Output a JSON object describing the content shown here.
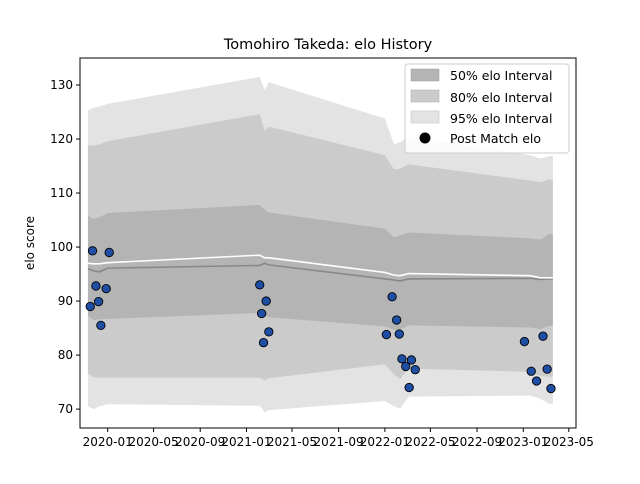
{
  "chart_data": {
    "type": "line",
    "title": "Tomohiro Takeda: elo History",
    "xlabel": "",
    "ylabel": "elo score",
    "xlim": [
      "2019-10-20",
      "2023-05-20"
    ],
    "ylim": [
      66.5,
      135
    ],
    "x_ticks": [
      "2020-01",
      "2020-05",
      "2020-09",
      "2021-01",
      "2021-05",
      "2021-09",
      "2022-01",
      "2022-05",
      "2022-09",
      "2023-01",
      "2023-05"
    ],
    "x_tick_dates": [
      "2020-01-01",
      "2020-05-01",
      "2020-09-01",
      "2021-01-01",
      "2021-05-01",
      "2021-09-01",
      "2022-01-01",
      "2022-05-01",
      "2022-09-01",
      "2023-01-01",
      "2023-05-01"
    ],
    "y_ticks": [
      70,
      80,
      90,
      100,
      110,
      120,
      130
    ],
    "legend_position": "top-right",
    "legend": [
      {
        "label": "50% elo Interval",
        "kind": "patch",
        "color": "#b4b4b4"
      },
      {
        "label": "80% elo Interval",
        "kind": "patch",
        "color": "#cbcbcb"
      },
      {
        "label": "95% elo Interval",
        "kind": "patch",
        "color": "#e3e3e3"
      },
      {
        "label": "Post Match elo",
        "kind": "marker",
        "color": "#000000"
      }
    ],
    "colors": {
      "band95": "#e3e3e3",
      "band80": "#cbcbcb",
      "band50": "#b4b4b4",
      "median_line": "#888888",
      "mean_line": "#ffffff",
      "points": "#1f4fa5"
    },
    "band_dates": [
      "2019-11-10",
      "2019-11-25",
      "2019-12-10",
      "2020-01-01",
      "2021-02-05",
      "2021-02-18",
      "2021-03-01",
      "2022-01-01",
      "2022-01-25",
      "2022-02-10",
      "2022-03-05",
      "2023-01-20",
      "2023-02-15",
      "2023-03-10",
      "2023-03-20"
    ],
    "bands": {
      "p95_upper": [
        125.3,
        125.8,
        126.0,
        126.5,
        131.5,
        129.0,
        130.5,
        123.8,
        119.0,
        119.4,
        120.5,
        117.0,
        116.4,
        116.8,
        116.9
      ],
      "p80_upper": [
        118.8,
        118.8,
        119.0,
        119.6,
        124.6,
        121.5,
        122.3,
        117.0,
        114.4,
        114.5,
        115.3,
        112.3,
        112.0,
        112.5,
        112.4
      ],
      "p50_upper": [
        105.8,
        105.2,
        105.5,
        106.3,
        107.8,
        106.9,
        106.4,
        103.4,
        101.8,
        102.1,
        102.7,
        101.6,
        101.4,
        102.4,
        102.4
      ],
      "p50_lower": [
        87.3,
        86.5,
        86.6,
        86.7,
        87.8,
        87.4,
        87.0,
        85.3,
        84.7,
        84.7,
        85.5,
        85.1,
        84.8,
        85.4,
        85.4
      ],
      "p80_lower": [
        76.6,
        75.9,
        75.8,
        75.8,
        75.8,
        75.3,
        75.7,
        78.3,
        76.4,
        75.6,
        77.5,
        76.9,
        76.1,
        76.0,
        76.0
      ],
      "p95_lower": [
        70.5,
        70.0,
        70.5,
        70.9,
        70.6,
        69.4,
        69.8,
        71.5,
        70.5,
        70.1,
        72.3,
        72.5,
        71.9,
        71.0,
        71.0
      ],
      "median": [
        96.0,
        95.6,
        95.4,
        96.1,
        96.6,
        97.0,
        96.7,
        94.1,
        93.9,
        93.7,
        94.1,
        94.2,
        94.0,
        94.1,
        94.1
      ],
      "mean": [
        97.0,
        96.9,
        96.9,
        97.1,
        98.5,
        98.0,
        98.0,
        95.3,
        94.8,
        94.7,
        95.1,
        94.7,
        94.3,
        94.3,
        94.3
      ]
    },
    "series": [
      {
        "name": "Post Match elo",
        "points": [
          [
            "2019-11-16",
            89.0
          ],
          [
            "2019-11-22",
            99.3
          ],
          [
            "2019-12-01",
            92.8
          ],
          [
            "2019-12-08",
            89.9
          ],
          [
            "2019-12-14",
            85.5
          ],
          [
            "2019-12-28",
            92.3
          ],
          [
            "2020-01-05",
            99.0
          ],
          [
            "2021-02-05",
            93.0
          ],
          [
            "2021-02-10",
            87.7
          ],
          [
            "2021-02-15",
            82.3
          ],
          [
            "2021-02-22",
            90.0
          ],
          [
            "2021-03-01",
            84.3
          ],
          [
            "2022-01-05",
            83.8
          ],
          [
            "2022-01-20",
            90.8
          ],
          [
            "2022-02-01",
            86.5
          ],
          [
            "2022-02-08",
            83.9
          ],
          [
            "2022-02-15",
            79.3
          ],
          [
            "2022-02-25",
            77.9
          ],
          [
            "2022-03-06",
            74.0
          ],
          [
            "2022-03-12",
            79.1
          ],
          [
            "2022-03-22",
            77.3
          ],
          [
            "2023-01-04",
            82.5
          ],
          [
            "2023-01-22",
            77.0
          ],
          [
            "2023-02-05",
            75.2
          ],
          [
            "2023-02-22",
            83.5
          ],
          [
            "2023-03-05",
            77.4
          ],
          [
            "2023-03-15",
            73.8
          ]
        ]
      }
    ]
  }
}
